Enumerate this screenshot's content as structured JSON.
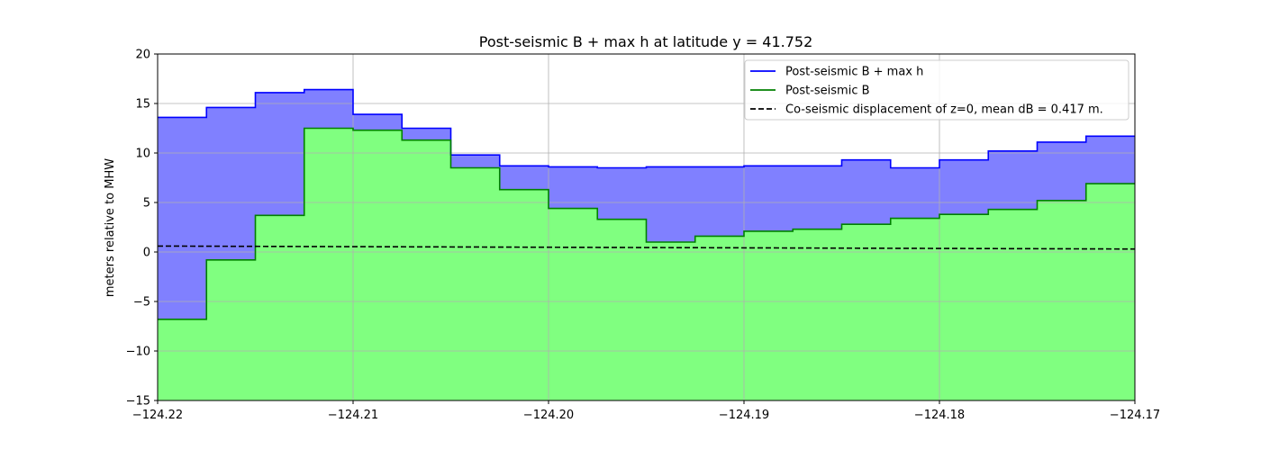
{
  "chart_data": {
    "type": "area",
    "title": "Post-seismic B + max h at latitude y = 41.752",
    "xlabel": "",
    "ylabel": "meters relative to MHW",
    "xlim": [
      -124.22,
      -124.17
    ],
    "ylim": [
      -15,
      20
    ],
    "grid": true,
    "legend_position": "top-right",
    "x_ticks": [
      -124.22,
      -124.21,
      -124.2,
      -124.19,
      -124.18,
      -124.17
    ],
    "x_tick_labels": [
      "−124.22",
      "−124.21",
      "−124.20",
      "−124.19",
      "−124.18",
      "−124.17"
    ],
    "y_ticks": [
      -15,
      -10,
      -5,
      0,
      5,
      10,
      15,
      20
    ],
    "y_tick_labels": [
      "−15",
      "−10",
      "−5",
      "0",
      "5",
      "10",
      "15",
      "20"
    ],
    "x_edges": [
      -124.22,
      -124.2175,
      -124.215,
      -124.2125,
      -124.21,
      -124.2075,
      -124.205,
      -124.2025,
      -124.2,
      -124.1975,
      -124.195,
      -124.1925,
      -124.19,
      -124.1875,
      -124.185,
      -124.1825,
      -124.18,
      -124.1775,
      -124.175,
      -124.1725,
      -124.17
    ],
    "series": [
      {
        "name": "Post-seismic B + max h",
        "color": "#0000ff",
        "fill": "#8080ff",
        "style": "solid",
        "values": [
          13.6,
          14.6,
          16.1,
          16.4,
          13.9,
          12.5,
          9.8,
          8.7,
          8.6,
          8.5,
          8.6,
          8.6,
          8.7,
          8.7,
          9.3,
          8.5,
          9.3,
          10.2,
          11.1,
          11.7
        ]
      },
      {
        "name": "Post-seismic B",
        "color": "#008000",
        "fill": "#80ff80",
        "style": "solid",
        "values": [
          -6.8,
          -0.8,
          3.7,
          12.5,
          12.3,
          11.3,
          8.5,
          6.3,
          4.4,
          3.3,
          1.0,
          1.6,
          2.1,
          2.3,
          2.8,
          3.4,
          3.8,
          4.3,
          5.2,
          6.9
        ]
      },
      {
        "name": "Co-seismic displacement of z=0, mean dB = 0.417 m.",
        "color": "#000000",
        "style": "dashed",
        "x": [
          -124.22,
          -124.17
        ],
        "values": [
          0.6,
          0.3
        ]
      }
    ]
  }
}
